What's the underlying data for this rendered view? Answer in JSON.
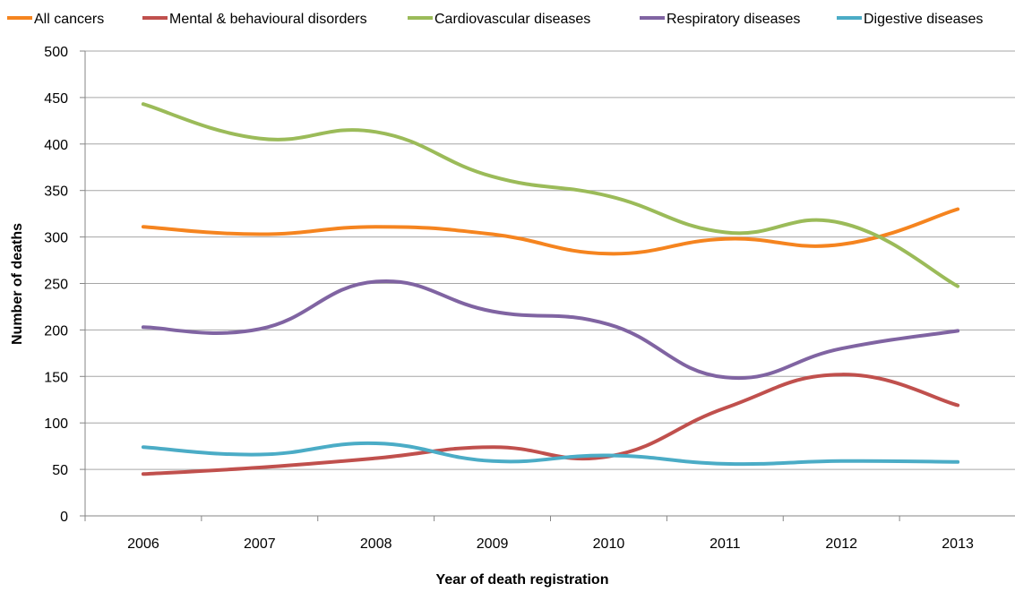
{
  "chart_data": {
    "type": "line",
    "title": "",
    "xlabel": "Year of death registration",
    "ylabel": "Number of deaths",
    "categories": [
      "2006",
      "2007",
      "2008",
      "2009",
      "2010",
      "2011",
      "2012",
      "2013"
    ],
    "ylim": [
      0,
      500
    ],
    "yticks": [
      0,
      50,
      100,
      150,
      200,
      250,
      300,
      350,
      400,
      450,
      500
    ],
    "grid": true,
    "legend_position": "top",
    "smooth": true,
    "series": [
      {
        "name": "All cancers",
        "color": "#f5841f",
        "values": [
          311,
          303,
          311,
          303,
          282,
          298,
          292,
          330
        ]
      },
      {
        "name": "Mental & behavioural disorders",
        "color": "#c0504d",
        "values": [
          45,
          52,
          62,
          74,
          64,
          116,
          152,
          119
        ]
      },
      {
        "name": "Cardiovascular diseases",
        "color": "#9bbb59",
        "values": [
          443,
          406,
          413,
          365,
          344,
          305,
          315,
          247
        ]
      },
      {
        "name": "Respiratory diseases",
        "color": "#8064a2",
        "values": [
          203,
          201,
          252,
          220,
          206,
          149,
          180,
          199
        ]
      },
      {
        "name": "Digestive diseases",
        "color": "#4bacc6",
        "values": [
          74,
          66,
          78,
          59,
          65,
          56,
          59,
          58
        ]
      }
    ]
  }
}
